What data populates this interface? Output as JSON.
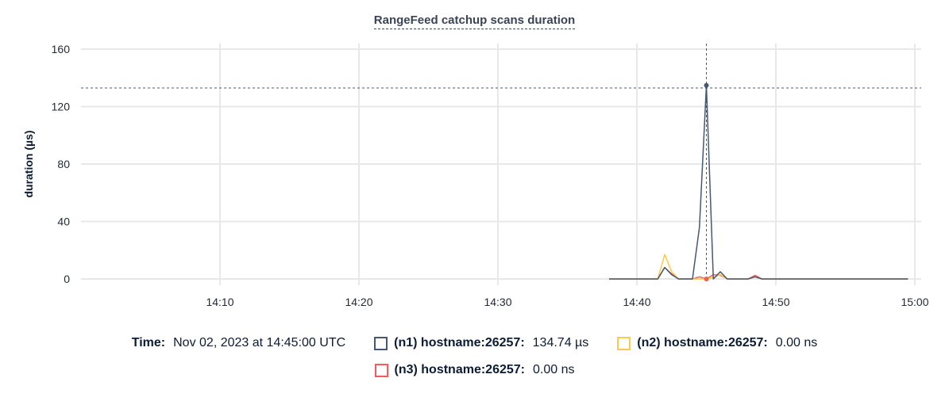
{
  "chart_data": {
    "type": "line",
    "title": "RangeFeed catchup scans duration",
    "ylabel": "duration (µs)",
    "xlabel": "",
    "ylim": [
      0,
      160
    ],
    "yticks": [
      0,
      40,
      80,
      120,
      160
    ],
    "xlim": [
      "14:00",
      "15:00"
    ],
    "xticks": [
      "14:10",
      "14:20",
      "14:30",
      "14:40",
      "14:50",
      "15:00"
    ],
    "grid": true,
    "x": [
      "14:38:00",
      "14:38:30",
      "14:39:00",
      "14:39:30",
      "14:40:00",
      "14:40:30",
      "14:41:00",
      "14:41:30",
      "14:42:00",
      "14:42:30",
      "14:43:00",
      "14:43:30",
      "14:44:00",
      "14:44:30",
      "14:45:00",
      "14:45:30",
      "14:46:00",
      "14:46:30",
      "14:47:00",
      "14:47:30",
      "14:48:00",
      "14:48:30",
      "14:49:00",
      "14:49:30",
      "14:50:00",
      "14:50:30",
      "14:51:00",
      "14:51:30",
      "14:52:00",
      "14:52:30",
      "14:53:00",
      "14:53:30",
      "14:54:00",
      "14:54:30",
      "14:55:00",
      "14:55:30",
      "14:56:00",
      "14:56:30",
      "14:57:00",
      "14:57:30",
      "14:58:00",
      "14:58:30",
      "14:59:00",
      "14:59:30"
    ],
    "series": [
      {
        "name": "(n1) hostname:26257",
        "color": "#475872",
        "values": [
          0,
          0,
          0,
          0,
          0,
          0,
          0,
          0,
          8,
          3,
          0,
          0,
          0,
          36,
          134.74,
          0,
          5,
          0,
          0,
          0,
          0,
          1.5,
          0,
          0,
          0,
          0,
          0,
          0,
          0,
          0,
          0,
          0,
          0,
          0,
          0,
          0,
          0,
          0,
          0,
          0,
          0,
          0,
          0,
          0
        ]
      },
      {
        "name": "(n2) hostname:26257",
        "color": "#ffc94a",
        "values": [
          0,
          0,
          0,
          0,
          0,
          0,
          0,
          0,
          17,
          5,
          0,
          0,
          0,
          0,
          0,
          1,
          3,
          0,
          0,
          0,
          0,
          1.5,
          0,
          0,
          0,
          0,
          0,
          0,
          0,
          0,
          0,
          0,
          0,
          0,
          0,
          0,
          0,
          0,
          0,
          0,
          0,
          0,
          0,
          0
        ]
      },
      {
        "name": "(n3) hostname:26257",
        "color": "#f25c5c",
        "values": [
          0,
          0,
          0,
          0,
          0,
          0,
          0,
          0,
          8,
          3.5,
          0,
          0,
          0,
          1.5,
          0,
          3,
          2.5,
          0,
          0,
          0,
          0,
          2.5,
          0,
          0,
          0,
          0,
          0,
          0,
          0,
          0,
          0,
          0,
          0,
          0,
          0,
          0,
          0,
          0,
          0,
          0,
          0,
          0,
          0,
          0
        ]
      }
    ],
    "crosshair": {
      "x": "14:45:00",
      "y": 133
    }
  },
  "legend": {
    "time_label": "Time:",
    "time_value": "Nov 02, 2023 at 14:45:00 UTC",
    "items": [
      {
        "label": "(n1) hostname:26257:",
        "value": "134.74 µs"
      },
      {
        "label": "(n2) hostname:26257:",
        "value": "0.00 ns"
      },
      {
        "label": "(n3) hostname:26257:",
        "value": "0.00 ns"
      }
    ]
  }
}
